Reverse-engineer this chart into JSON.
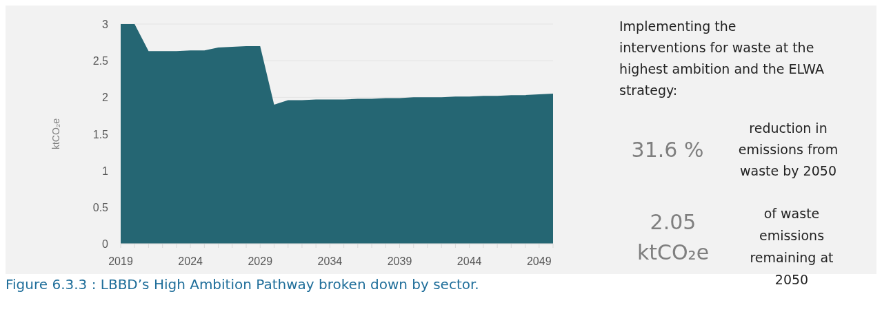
{
  "chart_data": {
    "type": "area",
    "ylabel": "ktCO₂e",
    "x": [
      2019,
      2020,
      2021,
      2022,
      2023,
      2024,
      2025,
      2026,
      2027,
      2028,
      2029,
      2030,
      2031,
      2032,
      2033,
      2034,
      2035,
      2036,
      2037,
      2038,
      2039,
      2040,
      2041,
      2042,
      2043,
      2044,
      2045,
      2046,
      2047,
      2048,
      2049,
      2050
    ],
    "series": [
      {
        "color": "#256673",
        "values": [
          3.0,
          3.0,
          2.63,
          2.63,
          2.63,
          2.64,
          2.64,
          2.68,
          2.69,
          2.7,
          2.7,
          1.9,
          1.96,
          1.96,
          1.97,
          1.97,
          1.97,
          1.98,
          1.98,
          1.99,
          1.99,
          2.0,
          2.0,
          2.0,
          2.01,
          2.01,
          2.02,
          2.02,
          2.03,
          2.03,
          2.04,
          2.05
        ]
      }
    ],
    "xlim": [
      2019,
      2050
    ],
    "xticks": [
      2019,
      {
        "value": 2020,
        "label": null
      },
      {
        "value": 2021,
        "label": null
      },
      {
        "value": 2022,
        "label": null
      },
      {
        "value": 2023,
        "label": null
      },
      2024,
      {
        "value": 2025,
        "label": null
      },
      {
        "value": 2026,
        "label": null
      },
      {
        "value": 2027,
        "label": null
      },
      {
        "value": 2028,
        "label": null
      },
      2029,
      {
        "value": 2030,
        "label": null
      },
      {
        "value": 2031,
        "label": null
      },
      {
        "value": 2032,
        "label": null
      },
      {
        "value": 2033,
        "label": null
      },
      2034,
      {
        "value": 2035,
        "label": null
      },
      {
        "value": 2036,
        "label": null
      },
      {
        "value": 2037,
        "label": null
      },
      {
        "value": 2038,
        "label": null
      },
      2039,
      {
        "value": 2040,
        "label": null
      },
      {
        "value": 2041,
        "label": null
      },
      {
        "value": 2042,
        "label": null
      },
      {
        "value": 2043,
        "label": null
      },
      2044,
      {
        "value": 2045,
        "label": null
      },
      {
        "value": 2046,
        "label": null
      },
      {
        "value": 2047,
        "label": null
      },
      {
        "value": 2048,
        "label": null
      },
      2049,
      {
        "value": 2050,
        "label": null
      }
    ],
    "ylim": [
      0,
      3
    ],
    "yticks": [
      0,
      0.5,
      1,
      1.5,
      2,
      2.5,
      3
    ],
    "grid": "y",
    "annotations": [
      "Implementing the interventions for waste at the highest ambition and the ELWA strategy:",
      "31.6 %",
      "reduction in emissions from waste by 2050",
      "2.05 ktCO₂e",
      "of waste emissions remaining at 2050",
      "Figure 6.3.3 : LBBD’s High Ambition Pathway broken down by sector."
    ]
  }
}
